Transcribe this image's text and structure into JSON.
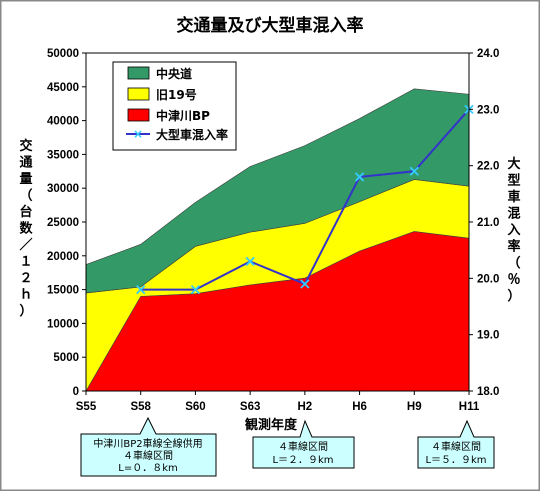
{
  "chart_data": {
    "type": "area",
    "title": "交通量及び大型車混入率",
    "xlabel": "観測年度",
    "ylabel": "交通量（台数／１２ｈ）",
    "y2label": "大型車混入率（％）",
    "categories": [
      "S55",
      "S58",
      "S60",
      "S63",
      "H2",
      "H6",
      "H9",
      "H11"
    ],
    "ylim": [
      0,
      50000
    ],
    "y2lim": [
      18.0,
      24.0
    ],
    "yticks": [
      "0",
      "5000",
      "10000",
      "15000",
      "20000",
      "25000",
      "30000",
      "35000",
      "40000",
      "45000",
      "50000"
    ],
    "y2ticks": [
      "18.0",
      "19.0",
      "20.0",
      "21.0",
      "22.0",
      "23.0",
      "24.0"
    ],
    "stacked": true,
    "series": [
      {
        "name": "中津川BP",
        "color": "#ff0000",
        "values": [
          0,
          14000,
          14400,
          15700,
          16700,
          20700,
          23600,
          22600
        ]
      },
      {
        "name": "旧19号",
        "color": "#ffff00",
        "values": [
          14500,
          1400,
          7000,
          7800,
          8100,
          7300,
          7700,
          7700
        ]
      },
      {
        "name": "中央道",
        "color": "#339966",
        "values": [
          4200,
          6300,
          6500,
          9700,
          11500,
          12300,
          13400,
          13600
        ]
      }
    ],
    "line_series": {
      "name": "大型車混入率",
      "color": "#3333cc",
      "marker_color": "#33ccff",
      "axis": "right",
      "values": [
        null,
        19.8,
        19.8,
        20.3,
        19.9,
        21.8,
        21.9,
        23.0
      ]
    },
    "legend_order": [
      "中央道",
      "旧19号",
      "中津川BP",
      "大型車混入率"
    ],
    "legend_position": "top-left",
    "grid": false
  },
  "annotations": [
    {
      "lines": [
        "中津川BP2車線全線供用",
        "４車線区間",
        "L=０．８km"
      ]
    },
    {
      "lines": [
        "４車線区間",
        "L＝２．９km"
      ]
    },
    {
      "lines": [
        "４車線区間",
        "L＝５．９km"
      ]
    }
  ]
}
